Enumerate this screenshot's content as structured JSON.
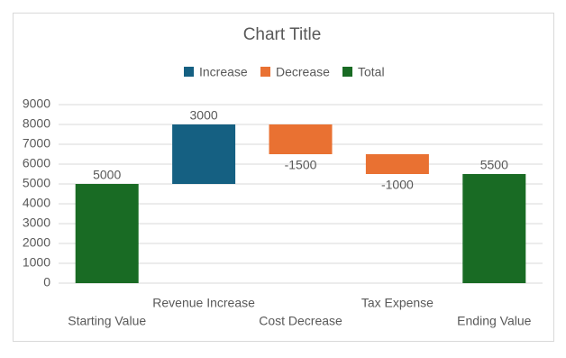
{
  "chart_data": {
    "type": "waterfall",
    "title": "Chart Title",
    "categories": [
      "Starting Value",
      "Revenue Increase",
      "Cost Decrease",
      "Tax Expense",
      "Ending Value"
    ],
    "series": [
      {
        "name": "Increase",
        "color": "#156082",
        "values": [
          null,
          3000,
          null,
          null,
          null
        ]
      },
      {
        "name": "Decrease",
        "color": "#e97132",
        "values": [
          null,
          null,
          -1500,
          -1000,
          null
        ]
      },
      {
        "name": "Total",
        "color": "#196b24",
        "values": [
          5000,
          null,
          null,
          null,
          5500
        ]
      }
    ],
    "ylim": [
      0,
      9000
    ],
    "yticks": [
      0,
      1000,
      2000,
      3000,
      4000,
      5000,
      6000,
      7000,
      8000,
      9000
    ],
    "grid": true,
    "legend": "top"
  }
}
